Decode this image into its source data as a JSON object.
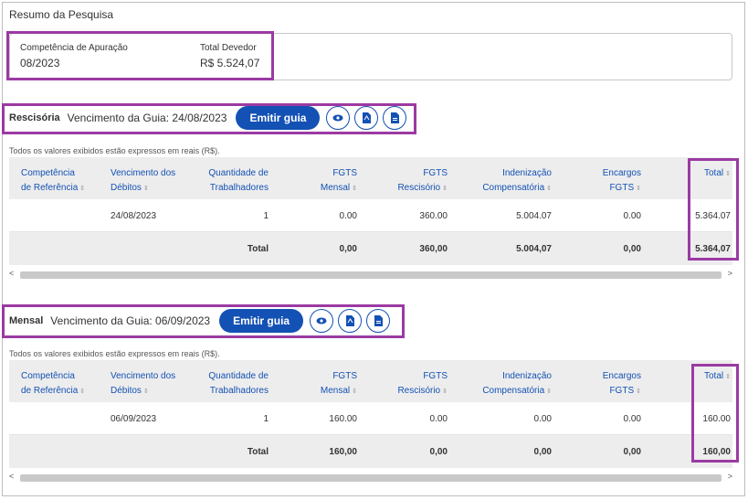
{
  "summary": {
    "title": "Resumo da Pesquisa",
    "competencia_label": "Competência de Apuração",
    "competencia_value": "08/2023",
    "total_label": "Total Devedor",
    "total_value": "R$ 5.524,07"
  },
  "rescisoria": {
    "name": "Rescisória",
    "vencimento": "Vencimento da Guia: 24/08/2023",
    "emit_label": "Emitir guia",
    "note": "Todos os valores exibidos estão expressos em reais (R$).",
    "headers": {
      "competencia": [
        "Competência",
        "de Referência"
      ],
      "vencimento": [
        "Vencimento dos",
        "Débitos"
      ],
      "quantidade": [
        "Quantidade de",
        "Trabalhadores"
      ],
      "fgts_mensal": [
        "FGTS",
        "Mensal"
      ],
      "fgts_rescisorio": [
        "FGTS",
        "Rescisório"
      ],
      "indenizacao": [
        "Indenização",
        "Compensatória"
      ],
      "encargos": [
        "Encargos",
        "FGTS"
      ],
      "total": [
        "Total"
      ]
    },
    "row": {
      "competencia": "",
      "vencimento": "24/08/2023",
      "quantidade": "1",
      "fgts_mensal": "0.00",
      "fgts_rescisorio": "360.00",
      "indenizacao": "5.004.07",
      "encargos": "0.00",
      "total": "5.364.07"
    },
    "totals": {
      "label": "Total",
      "fgts_mensal": "0,00",
      "fgts_rescisorio": "360,00",
      "indenizacao": "5.004,07",
      "encargos": "0,00",
      "total": "5.364,07"
    }
  },
  "mensal": {
    "name": "Mensal",
    "vencimento": "Vencimento da Guia: 06/09/2023",
    "emit_label": "Emitir guia",
    "note": "Todos os valores exibidos estão expressos em reais (R$).",
    "headers": {
      "competencia": [
        "Competência",
        "de Referência"
      ],
      "vencimento": [
        "Vencimento dos",
        "Débitos"
      ],
      "quantidade": [
        "Quantidade de",
        "Trabalhadores"
      ],
      "fgts_mensal": [
        "FGTS",
        "Mensal"
      ],
      "fgts_rescisorio": [
        "FGTS",
        "Rescisório"
      ],
      "indenizacao": [
        "Indenização",
        "Compensatória"
      ],
      "encargos": [
        "Encargos",
        "FGTS"
      ],
      "total": [
        "Total"
      ]
    },
    "row": {
      "competencia": "",
      "vencimento": "06/09/2023",
      "quantidade": "1",
      "fgts_mensal": "160.00",
      "fgts_rescisorio": "0.00",
      "indenizacao": "0.00",
      "encargos": "0.00",
      "total": "160.00"
    },
    "totals": {
      "label": "Total",
      "fgts_mensal": "160,00",
      "fgts_rescisorio": "0,00",
      "indenizacao": "0,00",
      "encargos": "0,00",
      "total": "160,00"
    }
  },
  "icons": [
    "eye-icon",
    "pdf-icon",
    "document-icon"
  ],
  "colors": {
    "primary": "#1351b4",
    "highlight": "#9b3aa3",
    "header_bg": "#ededed"
  }
}
